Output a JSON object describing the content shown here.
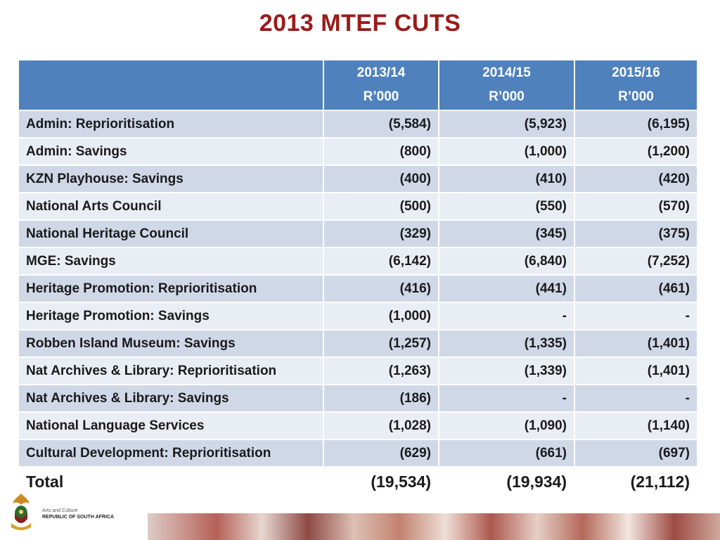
{
  "slide": {
    "title": "2013 MTEF CUTS"
  },
  "table": {
    "headers": [
      {
        "year": "",
        "unit": ""
      },
      {
        "year": "2013/14",
        "unit": "R’000"
      },
      {
        "year": "2014/15",
        "unit": "R’000"
      },
      {
        "year": "2015/16",
        "unit": "R’000"
      }
    ],
    "rows": [
      {
        "label": "Admin: Reprioritisation",
        "v1": "(5,584)",
        "v2": "(5,923)",
        "v3": "(6,195)"
      },
      {
        "label": "Admin: Savings",
        "v1": "(800)",
        "v2": "(1,000)",
        "v3": "(1,200)"
      },
      {
        "label": "KZN Playhouse: Savings",
        "v1": "(400)",
        "v2": "(410)",
        "v3": "(420)"
      },
      {
        "label": "National Arts Council",
        "v1": "(500)",
        "v2": "(550)",
        "v3": "(570)"
      },
      {
        "label": "National Heritage Council",
        "v1": "(329)",
        "v2": "(345)",
        "v3": "(375)"
      },
      {
        "label": "MGE: Savings",
        "v1": "(6,142)",
        "v2": "(6,840)",
        "v3": "(7,252)"
      },
      {
        "label": "Heritage Promotion:  Reprioritisation",
        "v1": "(416)",
        "v2": "(441)",
        "v3": "(461)"
      },
      {
        "label": "Heritage Promotion: Savings",
        "v1": "(1,000)",
        "v2": "-",
        "v3": "-"
      },
      {
        "label": "Robben Island Museum: Savings",
        "v1": "(1,257)",
        "v2": "(1,335)",
        "v3": "(1,401)"
      },
      {
        "label": "Nat Archives  & Library: Reprioritisation",
        "v1": "(1,263)",
        "v2": "(1,339)",
        "v3": "(1,401)"
      },
      {
        "label": "Nat Archives & Library: Savings",
        "v1": "(186)",
        "v2": "-",
        "v3": "-"
      },
      {
        "label": "National Language Services",
        "v1": "(1,028)",
        "v2": "(1,090)",
        "v3": "(1,140)"
      },
      {
        "label": "Cultural Development: Reprioritisation",
        "v1": "(629)",
        "v2": "(661)",
        "v3": "(697)"
      }
    ],
    "total": {
      "label": "Total",
      "v1": "(19,534)",
      "v2": "(19,934)",
      "v3": "(21,112)"
    }
  },
  "footer": {
    "dept_line": "Arts and Culture",
    "country": "REPUBLIC OF SOUTH AFRICA",
    "crest_icon": "coat-of-arms-icon"
  },
  "colors": {
    "title": "#9b1b1b",
    "header_bg": "#4f81bd",
    "row_odd": "#d0d8e8",
    "row_even": "#e9edf4"
  }
}
